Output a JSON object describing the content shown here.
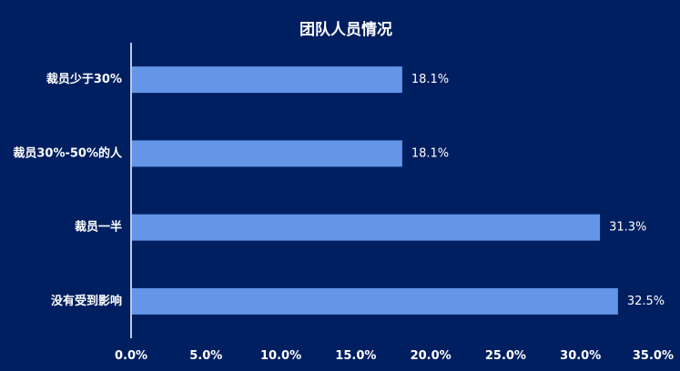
{
  "chart_data": {
    "type": "bar",
    "orientation": "horizontal",
    "title": "团队人员情况",
    "xlabel": "",
    "ylabel": "",
    "categories": [
      "裁员少于30%",
      "裁员30%-50%的人",
      "裁员一半",
      "没有受到影响"
    ],
    "values": [
      18.1,
      18.1,
      31.3,
      32.5
    ],
    "data_labels": [
      "18.1%",
      "18.1%",
      "31.3%",
      "32.5%"
    ],
    "xlim": [
      0,
      35
    ],
    "x_ticks": [
      "0.0%",
      "5.0%",
      "10.0%",
      "15.0%",
      "20.0%",
      "25.0%",
      "30.0%",
      "35.0%"
    ],
    "grid": false,
    "legend": "none",
    "colors": {
      "background": "#001f60",
      "bar": "#6495e6",
      "axis": "#ffffff",
      "text": "#ffffff"
    }
  }
}
